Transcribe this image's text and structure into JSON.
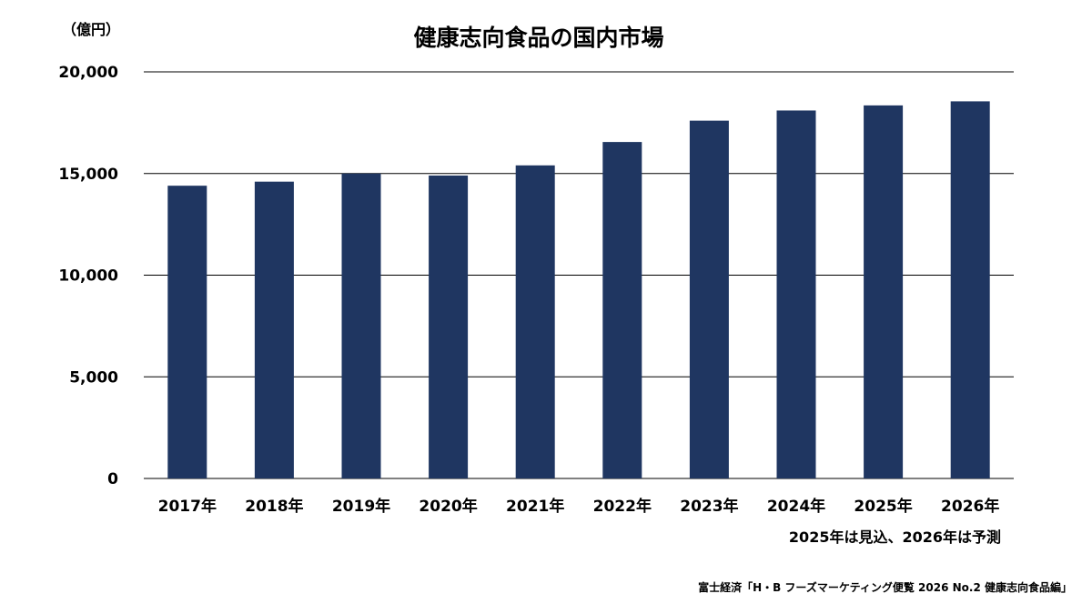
{
  "chart_data": {
    "type": "bar",
    "title": "健康志向食品の国内市場",
    "unit_label": "（億円）",
    "categories": [
      "2017年",
      "2018年",
      "2019年",
      "2020年",
      "2021年",
      "2022年",
      "2023年",
      "2024年",
      "2025年",
      "2026年"
    ],
    "values": [
      14400,
      14600,
      15000,
      14900,
      15400,
      16550,
      17600,
      18100,
      18350,
      18550
    ],
    "ylim": [
      0,
      20000
    ],
    "yticks": [
      0,
      5000,
      10000,
      15000,
      20000
    ],
    "ytick_labels": [
      "0",
      "5,000",
      "10,000",
      "15,000",
      "20,000"
    ],
    "grid": true,
    "bar_color": "#1f3661",
    "note": "2025年は見込、2026年は予測",
    "source": "富士経済「H・B フーズマーケティング便覧 2026 No.2 健康志向食品編」"
  }
}
